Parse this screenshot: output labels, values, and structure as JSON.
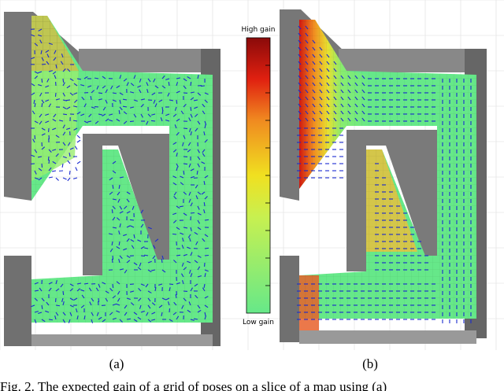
{
  "figure": {
    "colorbar": {
      "top_label": "High gain",
      "bottom_label": "Low gain"
    },
    "panels": [
      {
        "label": "(a)"
      },
      {
        "label": "(b)"
      }
    ],
    "caption": "Fig. 2.   The expected gain of a grid of poses on a slice of a map using (a)"
  }
}
